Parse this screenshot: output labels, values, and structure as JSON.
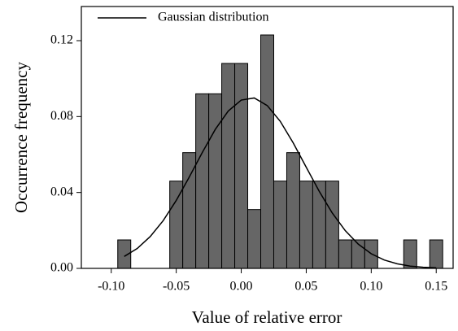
{
  "chart_data": {
    "type": "histogram",
    "xlabel": "Value of relative error",
    "ylabel": "Occurrence frequency",
    "bins": [
      -0.095,
      -0.085,
      -0.075,
      -0.065,
      -0.055,
      -0.045,
      -0.035,
      -0.025,
      -0.015,
      -0.005,
      0.005,
      0.015,
      0.025,
      0.035,
      0.045,
      0.055,
      0.065,
      0.075,
      0.085,
      0.095,
      0.105,
      0.115,
      0.125,
      0.135,
      0.145,
      0.155
    ],
    "values": [
      0.015,
      0,
      0,
      0,
      0.046,
      0.061,
      0.092,
      0.092,
      0.108,
      0.108,
      0.031,
      0.123,
      0.046,
      0.061,
      0.046,
      0.046,
      0.046,
      0.015,
      0.015,
      0.015,
      0,
      0,
      0.015,
      0,
      0.015
    ],
    "color": "#666666",
    "series": [
      {
        "name": "Gaussian distribution",
        "type": "line",
        "color": "#000000",
        "x": [
          -0.09,
          -0.08,
          -0.07,
          -0.06,
          -0.05,
          -0.04,
          -0.03,
          -0.02,
          -0.01,
          0.0,
          0.01,
          0.02,
          0.03,
          0.04,
          0.05,
          0.06,
          0.07,
          0.08,
          0.09,
          0.1,
          0.11,
          0.12,
          0.13,
          0.14,
          0.15
        ],
        "values": [
          0.0063,
          0.0105,
          0.0168,
          0.0252,
          0.0358,
          0.0481,
          0.061,
          0.0732,
          0.0829,
          0.0887,
          0.0898,
          0.0858,
          0.0775,
          0.0661,
          0.0533,
          0.0406,
          0.0292,
          0.0199,
          0.0128,
          0.0077,
          0.0044,
          0.0024,
          0.0012,
          0.0006,
          0.0003
        ]
      }
    ],
    "xlim": [
      -0.123,
      0.163
    ],
    "ylim": [
      0,
      0.138
    ],
    "xticks": [
      {
        "value": -0.1,
        "label": "-0.10"
      },
      {
        "value": -0.05,
        "label": "-0.05"
      },
      {
        "value": 0.0,
        "label": "0.00"
      },
      {
        "value": 0.05,
        "label": "0.05"
      },
      {
        "value": 0.1,
        "label": "0.10"
      },
      {
        "value": 0.15,
        "label": "0.15"
      }
    ],
    "yticks": [
      {
        "value": 0.0,
        "label": "0.00"
      },
      {
        "value": 0.04,
        "label": "0.04"
      },
      {
        "value": 0.08,
        "label": "0.08"
      },
      {
        "value": 0.12,
        "label": "0.12"
      }
    ],
    "legend": "upper left"
  }
}
